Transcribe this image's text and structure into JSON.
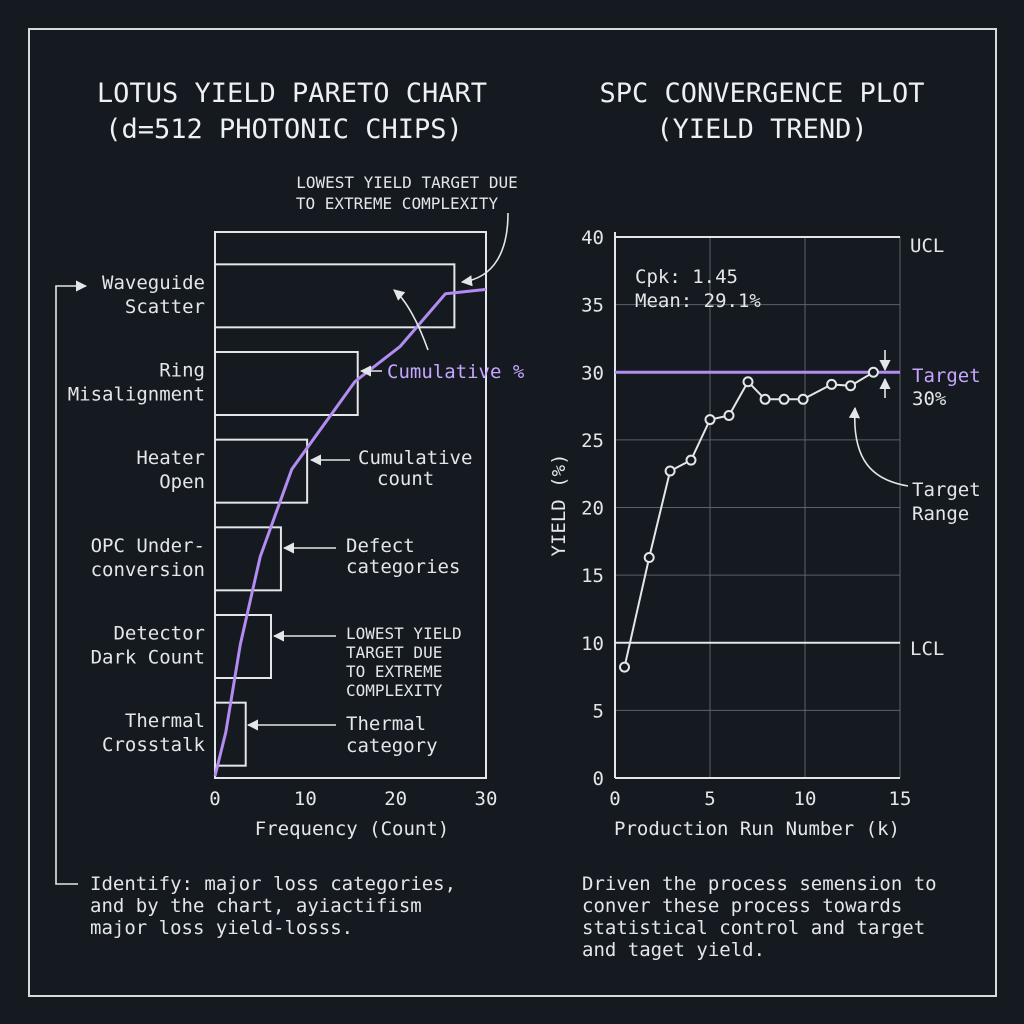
{
  "colors": {
    "background": "#141a1f",
    "foreground": "#e4e6e8",
    "accent_purple": "#b28cf0",
    "grid": "#5b6268"
  },
  "left": {
    "title_line1": "LOTUS YIELD PARETO CHART",
    "title_line2": "(d=512 PHOTONIC CHIPS)",
    "annotations": {
      "top_note_line1": "LOWEST YIELD TARGET DUE",
      "top_note_line2": "TO EXTREME COMPLEXITY",
      "cumulative_pct": "Cumulative %",
      "cumulative_count_line1": "Cumulative",
      "cumulative_count_line2": "count",
      "defect_line1": "Defect",
      "defect_line2": "categories",
      "lowest_line1": "LOWEST YIELD",
      "lowest_line2": "TARGET DUE",
      "lowest_line3": "TO EXTREME",
      "lowest_line4": "COMPLEXITY",
      "thermal_line1": "Thermal",
      "thermal_line2": "category"
    },
    "footer_line1": "Identify: major loss categories,",
    "footer_line2": "and by the chart, ayiactifism",
    "footer_line3": "major loss yield-losss."
  },
  "right": {
    "title_line1": "SPC CONVERGENCE PLOT",
    "title_line2": "(YIELD TREND)",
    "cpk": "Cpk: 1.45",
    "mean": "Mean: 29.1%",
    "ucl": "UCL",
    "lcl": "LCL",
    "target_line1": "Target",
    "target_line2": "30%",
    "target_range_line1": "Target",
    "target_range_line2": "Range",
    "footer_line1": "Driven the process semension to",
    "footer_line2": "conver these process towards",
    "footer_line3": "statistical control and target",
    "footer_line4": "and taget yield."
  },
  "chart_data": [
    {
      "type": "bar",
      "orientation": "horizontal",
      "title": "LOTUS YIELD PARETO CHART (d=512 PHOTONIC CHIPS)",
      "xlabel": "Frequency (Count)",
      "ylabel": "",
      "xlim": [
        0,
        30
      ],
      "xticks": [
        0,
        10,
        20,
        30
      ],
      "categories": [
        [
          "Waveguide",
          "Scatter"
        ],
        [
          "Ring",
          "Misalignment"
        ],
        [
          "Heater",
          "Open"
        ],
        [
          "OPC Under-",
          "conversion"
        ],
        [
          "Detector",
          "Dark Count"
        ],
        [
          "Thermal",
          "Crosstalk"
        ]
      ],
      "values": [
        26.5,
        15.8,
        10.2,
        7.3,
        6.2,
        3.4
      ],
      "cumulative_line": {
        "name": "Cumulative %",
        "x": [
          0,
          1.2,
          2.8,
          5,
          8.5,
          15.5,
          20.5,
          25.5,
          30
        ],
        "y": [
          0,
          0.5,
          1.5,
          2.5,
          3.5,
          4.5,
          4.9,
          5.5,
          5.55
        ]
      },
      "grid": false
    },
    {
      "type": "line",
      "title": "SPC CONVERGENCE PLOT (YIELD TREND)",
      "xlabel": "Production Run Number (k)",
      "ylabel": "YIELD (%)",
      "xlim": [
        0,
        15
      ],
      "ylim": [
        0,
        40
      ],
      "xticks": [
        0,
        5,
        10,
        15
      ],
      "yticks": [
        0,
        5,
        10,
        15,
        20,
        25,
        30,
        35,
        40
      ],
      "grid": true,
      "series": [
        {
          "x": [
            0.5,
            1.8,
            2.9,
            4.0,
            5.0,
            6.0,
            7.0,
            7.9,
            8.9,
            9.9,
            11.4,
            12.4,
            13.6
          ],
          "y": [
            8.2,
            16.3,
            22.7,
            23.5,
            26.5,
            26.8,
            29.3,
            28.0,
            28.0,
            28.0,
            29.1,
            29.0,
            30.0
          ]
        }
      ],
      "ucl": 40,
      "lcl": 10,
      "target": 30
    }
  ]
}
